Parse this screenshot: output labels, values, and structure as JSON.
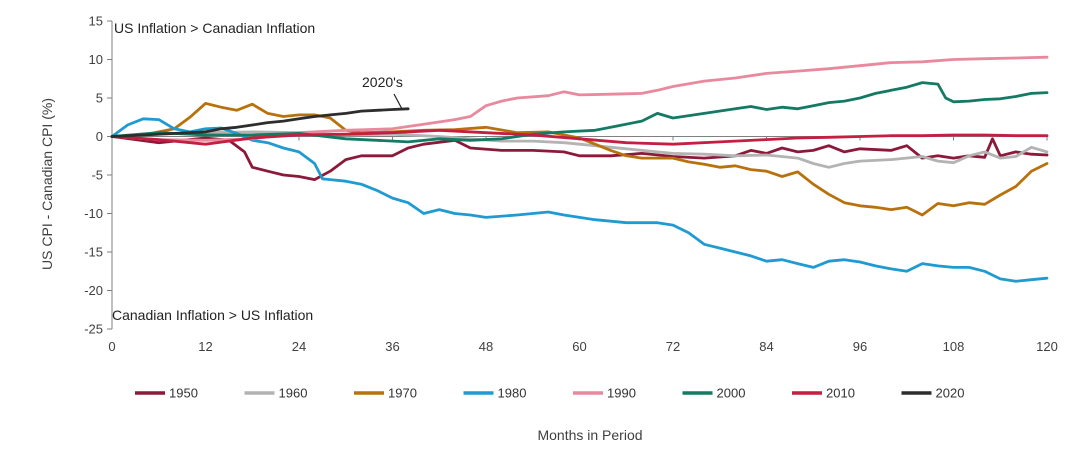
{
  "chart_data": {
    "type": "line",
    "title": "",
    "xlabel": "Months in Period",
    "ylabel": "US CPI - Canadian CPI (%)",
    "xlim": [
      0,
      120
    ],
    "ylim": [
      -25,
      15
    ],
    "x_ticks": [
      0,
      12,
      24,
      36,
      48,
      60,
      72,
      84,
      96,
      108,
      120
    ],
    "x_tick_labels": [
      "0",
      "12",
      "24",
      "36",
      "48",
      "60",
      "72",
      "84",
      "96",
      "108",
      "120"
    ],
    "y_ticks": [
      15,
      10,
      5,
      0,
      -5,
      -10,
      -15,
      -20,
      -25
    ],
    "y_tick_labels": [
      "15",
      "10",
      "5",
      "0",
      "-5",
      "-10",
      "-15",
      "-20",
      "-25"
    ],
    "grid": false,
    "legend_position": "bottom",
    "annotations": {
      "top": "US Inflation > Canadian Inflation",
      "bottom": "Canadian Inflation > US Inflation",
      "callout": "2020's"
    },
    "series": [
      {
        "name": "1950",
        "color": "#8b1a3a",
        "points": [
          [
            0,
            0
          ],
          [
            6,
            -0.8
          ],
          [
            12,
            -0.2
          ],
          [
            15,
            -0.5
          ],
          [
            17,
            -2
          ],
          [
            18,
            -4
          ],
          [
            20,
            -4.5
          ],
          [
            22,
            -5
          ],
          [
            24,
            -5.2
          ],
          [
            26,
            -5.6
          ],
          [
            28,
            -4.5
          ],
          [
            30,
            -3
          ],
          [
            32,
            -2.5
          ],
          [
            36,
            -2.5
          ],
          [
            38,
            -1.5
          ],
          [
            40,
            -1
          ],
          [
            44,
            -0.5
          ],
          [
            46,
            -1.5
          ],
          [
            50,
            -1.8
          ],
          [
            54,
            -1.8
          ],
          [
            58,
            -2
          ],
          [
            60,
            -2.5
          ],
          [
            64,
            -2.5
          ],
          [
            68,
            -2.2
          ],
          [
            72,
            -2.6
          ],
          [
            76,
            -2.8
          ],
          [
            80,
            -2.5
          ],
          [
            82,
            -1.8
          ],
          [
            84,
            -2.2
          ],
          [
            86,
            -1.5
          ],
          [
            88,
            -2
          ],
          [
            90,
            -1.8
          ],
          [
            92,
            -1.2
          ],
          [
            94,
            -2
          ],
          [
            96,
            -1.6
          ],
          [
            100,
            -1.8
          ],
          [
            102,
            -1.2
          ],
          [
            104,
            -2.8
          ],
          [
            106,
            -2.5
          ],
          [
            108,
            -2.8
          ],
          [
            110,
            -2.5
          ],
          [
            112,
            -2.7
          ],
          [
            113,
            -0.3
          ],
          [
            114,
            -2.5
          ],
          [
            116,
            -2
          ],
          [
            118,
            -2.3
          ],
          [
            120,
            -2.4
          ]
        ]
      },
      {
        "name": "1960",
        "color": "#b3b3b3",
        "points": [
          [
            0,
            0
          ],
          [
            6,
            0.3
          ],
          [
            12,
            0.5
          ],
          [
            18,
            0.6
          ],
          [
            24,
            0.5
          ],
          [
            30,
            0.2
          ],
          [
            36,
            0.3
          ],
          [
            42,
            0
          ],
          [
            46,
            -0.3
          ],
          [
            50,
            -0.6
          ],
          [
            54,
            -0.6
          ],
          [
            58,
            -0.8
          ],
          [
            62,
            -1.2
          ],
          [
            66,
            -1.6
          ],
          [
            70,
            -2
          ],
          [
            72,
            -2.2
          ],
          [
            76,
            -2.3
          ],
          [
            80,
            -2.5
          ],
          [
            84,
            -2.4
          ],
          [
            88,
            -2.8
          ],
          [
            90,
            -3.5
          ],
          [
            92,
            -4
          ],
          [
            94,
            -3.5
          ],
          [
            96,
            -3.2
          ],
          [
            100,
            -3
          ],
          [
            104,
            -2.6
          ],
          [
            106,
            -3.2
          ],
          [
            108,
            -3.4
          ],
          [
            110,
            -2.5
          ],
          [
            112,
            -2
          ],
          [
            114,
            -2.8
          ],
          [
            116,
            -2.6
          ],
          [
            118,
            -1.4
          ],
          [
            120,
            -2
          ]
        ]
      },
      {
        "name": "1970",
        "color": "#b8720d",
        "points": [
          [
            0,
            0
          ],
          [
            4,
            0.2
          ],
          [
            8,
            1
          ],
          [
            10,
            2.5
          ],
          [
            12,
            4.3
          ],
          [
            14,
            3.8
          ],
          [
            16,
            3.4
          ],
          [
            18,
            4.2
          ],
          [
            20,
            3
          ],
          [
            22,
            2.6
          ],
          [
            24,
            2.8
          ],
          [
            26,
            2.8
          ],
          [
            28,
            2.4
          ],
          [
            30,
            0.8
          ],
          [
            32,
            0.5
          ],
          [
            36,
            0.6
          ],
          [
            40,
            0.8
          ],
          [
            44,
            0.9
          ],
          [
            48,
            1.2
          ],
          [
            52,
            0.5
          ],
          [
            56,
            0.6
          ],
          [
            60,
            -0.2
          ],
          [
            62,
            -1
          ],
          [
            64,
            -1.8
          ],
          [
            66,
            -2.5
          ],
          [
            68,
            -2.8
          ],
          [
            72,
            -2.8
          ],
          [
            74,
            -3.3
          ],
          [
            76,
            -3.6
          ],
          [
            78,
            -4
          ],
          [
            80,
            -3.8
          ],
          [
            82,
            -4.3
          ],
          [
            84,
            -4.5
          ],
          [
            86,
            -5.2
          ],
          [
            88,
            -4.6
          ],
          [
            90,
            -6.2
          ],
          [
            92,
            -7.5
          ],
          [
            94,
            -8.6
          ],
          [
            96,
            -9
          ],
          [
            98,
            -9.2
          ],
          [
            100,
            -9.5
          ],
          [
            102,
            -9.2
          ],
          [
            104,
            -10.2
          ],
          [
            106,
            -8.7
          ],
          [
            108,
            -9
          ],
          [
            110,
            -8.6
          ],
          [
            112,
            -8.8
          ],
          [
            114,
            -7.6
          ],
          [
            116,
            -6.5
          ],
          [
            118,
            -4.5
          ],
          [
            120,
            -3.5
          ]
        ]
      },
      {
        "name": "1980",
        "color": "#1f9bd2",
        "points": [
          [
            0,
            0
          ],
          [
            2,
            1.5
          ],
          [
            4,
            2.3
          ],
          [
            6,
            2.2
          ],
          [
            8,
            1
          ],
          [
            10,
            0.6
          ],
          [
            12,
            1
          ],
          [
            14,
            1.1
          ],
          [
            16,
            0.4
          ],
          [
            18,
            -0.5
          ],
          [
            20,
            -0.8
          ],
          [
            22,
            -1.5
          ],
          [
            24,
            -2
          ],
          [
            26,
            -3.5
          ],
          [
            27,
            -5.5
          ],
          [
            28,
            -5.6
          ],
          [
            30,
            -5.8
          ],
          [
            32,
            -6.2
          ],
          [
            34,
            -7
          ],
          [
            36,
            -8
          ],
          [
            38,
            -8.6
          ],
          [
            40,
            -10
          ],
          [
            42,
            -9.5
          ],
          [
            44,
            -10
          ],
          [
            46,
            -10.2
          ],
          [
            48,
            -10.5
          ],
          [
            52,
            -10.2
          ],
          [
            56,
            -9.8
          ],
          [
            58,
            -10.2
          ],
          [
            60,
            -10.5
          ],
          [
            62,
            -10.8
          ],
          [
            66,
            -11.2
          ],
          [
            70,
            -11.2
          ],
          [
            72,
            -11.5
          ],
          [
            74,
            -12.5
          ],
          [
            76,
            -14
          ],
          [
            78,
            -14.5
          ],
          [
            80,
            -15
          ],
          [
            82,
            -15.5
          ],
          [
            84,
            -16.2
          ],
          [
            86,
            -16
          ],
          [
            88,
            -16.5
          ],
          [
            90,
            -17
          ],
          [
            92,
            -16.2
          ],
          [
            94,
            -16
          ],
          [
            96,
            -16.3
          ],
          [
            98,
            -16.8
          ],
          [
            100,
            -17.2
          ],
          [
            102,
            -17.5
          ],
          [
            104,
            -16.5
          ],
          [
            106,
            -16.8
          ],
          [
            108,
            -17
          ],
          [
            110,
            -17
          ],
          [
            112,
            -17.5
          ],
          [
            114,
            -18.5
          ],
          [
            116,
            -18.8
          ],
          [
            118,
            -18.6
          ],
          [
            120,
            -18.4
          ]
        ]
      },
      {
        "name": "1990",
        "color": "#e8899e",
        "points": [
          [
            0,
            0
          ],
          [
            6,
            -0.4
          ],
          [
            12,
            -0.5
          ],
          [
            18,
            -0.3
          ],
          [
            24,
            0.5
          ],
          [
            30,
            0.8
          ],
          [
            36,
            1
          ],
          [
            40,
            1.6
          ],
          [
            44,
            2.2
          ],
          [
            46,
            2.6
          ],
          [
            48,
            4
          ],
          [
            50,
            4.6
          ],
          [
            52,
            5
          ],
          [
            56,
            5.3
          ],
          [
            58,
            5.8
          ],
          [
            60,
            5.4
          ],
          [
            64,
            5.5
          ],
          [
            68,
            5.6
          ],
          [
            70,
            6
          ],
          [
            72,
            6.5
          ],
          [
            76,
            7.2
          ],
          [
            80,
            7.6
          ],
          [
            84,
            8.2
          ],
          [
            88,
            8.5
          ],
          [
            92,
            8.8
          ],
          [
            96,
            9.2
          ],
          [
            100,
            9.6
          ],
          [
            104,
            9.7
          ],
          [
            108,
            10
          ],
          [
            112,
            10.1
          ],
          [
            116,
            10.2
          ],
          [
            120,
            10.3
          ]
        ]
      },
      {
        "name": "2000",
        "color": "#147a63",
        "points": [
          [
            0,
            0
          ],
          [
            6,
            0.5
          ],
          [
            12,
            0.2
          ],
          [
            18,
            0.2
          ],
          [
            24,
            0.4
          ],
          [
            30,
            -0.3
          ],
          [
            34,
            -0.5
          ],
          [
            38,
            -0.7
          ],
          [
            42,
            -0.3
          ],
          [
            46,
            -0.5
          ],
          [
            50,
            -0.3
          ],
          [
            54,
            0.3
          ],
          [
            58,
            0.6
          ],
          [
            62,
            0.8
          ],
          [
            64,
            1.2
          ],
          [
            68,
            2
          ],
          [
            70,
            3
          ],
          [
            72,
            2.4
          ],
          [
            76,
            3
          ],
          [
            80,
            3.6
          ],
          [
            82,
            3.9
          ],
          [
            84,
            3.5
          ],
          [
            86,
            3.8
          ],
          [
            88,
            3.6
          ],
          [
            90,
            4
          ],
          [
            92,
            4.4
          ],
          [
            94,
            4.6
          ],
          [
            96,
            5
          ],
          [
            98,
            5.6
          ],
          [
            100,
            6
          ],
          [
            102,
            6.4
          ],
          [
            104,
            7
          ],
          [
            106,
            6.8
          ],
          [
            107,
            5
          ],
          [
            108,
            4.5
          ],
          [
            110,
            4.6
          ],
          [
            112,
            4.8
          ],
          [
            114,
            4.9
          ],
          [
            116,
            5.2
          ],
          [
            118,
            5.6
          ],
          [
            120,
            5.7
          ]
        ]
      },
      {
        "name": "2010",
        "color": "#c41e42",
        "points": [
          [
            0,
            0
          ],
          [
            6,
            -0.4
          ],
          [
            12,
            -1
          ],
          [
            18,
            -0.2
          ],
          [
            24,
            0.2
          ],
          [
            30,
            0.3
          ],
          [
            36,
            0.5
          ],
          [
            42,
            0.8
          ],
          [
            48,
            0.5
          ],
          [
            54,
            0.2
          ],
          [
            60,
            -0.3
          ],
          [
            66,
            -0.8
          ],
          [
            72,
            -1
          ],
          [
            78,
            -0.7
          ],
          [
            84,
            -0.4
          ],
          [
            88,
            -0.2
          ],
          [
            92,
            -0.1
          ],
          [
            96,
            0
          ],
          [
            100,
            0.1
          ],
          [
            104,
            0.1
          ],
          [
            108,
            0.2
          ],
          [
            112,
            0.2
          ],
          [
            116,
            0.1
          ],
          [
            120,
            0.1
          ]
        ]
      },
      {
        "name": "2020",
        "color": "#2d2d2d",
        "points": [
          [
            0,
            0
          ],
          [
            4,
            0.2
          ],
          [
            8,
            0.4
          ],
          [
            10,
            0.5
          ],
          [
            12,
            0.6
          ],
          [
            14,
            1
          ],
          [
            16,
            1.2
          ],
          [
            18,
            1.5
          ],
          [
            20,
            1.8
          ],
          [
            22,
            2
          ],
          [
            24,
            2.3
          ],
          [
            26,
            2.6
          ],
          [
            28,
            2.8
          ],
          [
            30,
            3
          ],
          [
            32,
            3.3
          ],
          [
            34,
            3.4
          ],
          [
            36,
            3.5
          ],
          [
            38,
            3.6
          ]
        ]
      }
    ]
  }
}
